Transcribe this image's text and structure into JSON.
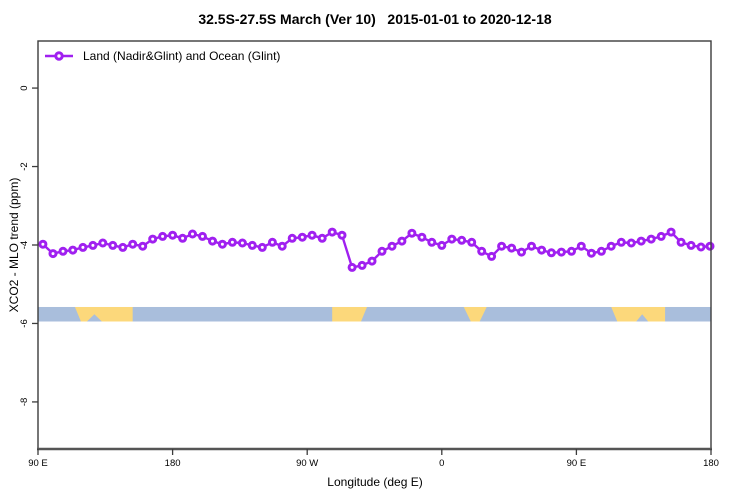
{
  "title": "32.5S-27.5S March (Ver 10)   2015-01-01 to 2020-12-18",
  "legend": {
    "label": "Land (Nadir&Glint) and Ocean (Glint)"
  },
  "x_axis": {
    "label": "Longitude (deg E)",
    "ticks": [
      {
        "value": 90,
        "label": "90 E"
      },
      {
        "value": 180,
        "label": "180"
      },
      {
        "value": 270,
        "label": "90 W"
      },
      {
        "value": 360,
        "label": "0"
      },
      {
        "value": 450,
        "label": "90 E"
      },
      {
        "value": 540,
        "label": "180"
      }
    ]
  },
  "y_axis": {
    "label": "XCO2 - MLO trend (ppm)",
    "ticks": [
      {
        "value": 0,
        "label": "0"
      },
      {
        "value": -2,
        "label": "-2"
      },
      {
        "value": -4,
        "label": "-4"
      },
      {
        "value": -6,
        "label": "-6"
      },
      {
        "value": -8,
        "label": "-8"
      }
    ]
  },
  "colors": {
    "series": "#A020F0",
    "marker_fill": "#ffffff",
    "land": "#FCD87B",
    "ocean": "#A9BEDC",
    "axis": "#3C3C3C",
    "baseline": "#555555"
  },
  "chart_data": {
    "type": "line",
    "title": "32.5S-27.5S March (Ver 10)   2015-01-01 to 2020-12-18",
    "xlabel": "Longitude (deg E)",
    "ylabel": "XCO2 - MLO trend (ppm)",
    "xlim": [
      90,
      540
    ],
    "ylim": [
      -9.2,
      1.2
    ],
    "x_tick_values": [
      90,
      180,
      270,
      360,
      450,
      540
    ],
    "y_tick_values": [
      0,
      -2,
      -4,
      -6,
      -8
    ],
    "grid": "off",
    "legend_position": "top-left-inside",
    "series": [
      {
        "name": "Land (Nadir&Glint) and Ocean (Glint)",
        "marker": "open-circle",
        "x": [
          93.3,
          100,
          106.7,
          113.3,
          120,
          126.7,
          133.3,
          140,
          146.7,
          153.3,
          160,
          166.7,
          173.3,
          180,
          186.7,
          193.3,
          200,
          206.7,
          213.3,
          220,
          226.7,
          233.3,
          240,
          246.7,
          253.3,
          260,
          266.7,
          273.3,
          280,
          286.7,
          293.3,
          300,
          306.7,
          313.3,
          320,
          326.7,
          333.3,
          340,
          346.7,
          353.3,
          360,
          366.7,
          373.3,
          380,
          386.7,
          393.3,
          400,
          406.7,
          413.3,
          420,
          426.7,
          433.3,
          440,
          446.7,
          453.3,
          460,
          466.7,
          473.3,
          480,
          486.7,
          493.3,
          500,
          506.7,
          513.3,
          520,
          526.7,
          533.3,
          539.3
        ],
        "values": [
          -3.98,
          -4.22,
          -4.16,
          -4.13,
          -4.06,
          -4.01,
          -3.95,
          -4.01,
          -4.06,
          -3.98,
          -4.03,
          -3.85,
          -3.78,
          -3.75,
          -3.83,
          -3.72,
          -3.78,
          -3.9,
          -3.98,
          -3.93,
          -3.95,
          -4.01,
          -4.06,
          -3.93,
          -4.03,
          -3.83,
          -3.8,
          -3.75,
          -3.83,
          -3.67,
          -3.75,
          -4.57,
          -4.52,
          -4.41,
          -4.16,
          -4.03,
          -3.9,
          -3.7,
          -3.8,
          -3.93,
          -4.01,
          -3.85,
          -3.88,
          -3.93,
          -4.16,
          -4.29,
          -4.03,
          -4.08,
          -4.18,
          -4.03,
          -4.13,
          -4.2,
          -4.18,
          -4.16,
          -4.03,
          -4.21,
          -4.16,
          -4.03,
          -3.93,
          -3.95,
          -3.9,
          -3.85,
          -3.78,
          -3.67,
          -3.93,
          -4.01,
          -4.05,
          -4.03
        ]
      }
    ],
    "land_ocean_strip": {
      "y_range": [
        -5.95,
        -5.58
      ],
      "ocean_range": [
        90,
        540
      ],
      "land_segments": [
        {
          "from": 114.7,
          "to": 153.3,
          "taper": "left",
          "notches": [
            {
              "from": 122.7,
              "to": 132.7
            }
          ]
        },
        {
          "from": 286.7,
          "to": 310.0,
          "taper": "right",
          "notches": []
        },
        {
          "from": 374.7,
          "to": 390.0,
          "taper": "both",
          "notches": []
        },
        {
          "from": 473.3,
          "to": 509.3,
          "taper": "left",
          "notches": [
            {
              "from": 490,
              "to": 498
            }
          ]
        }
      ]
    }
  }
}
